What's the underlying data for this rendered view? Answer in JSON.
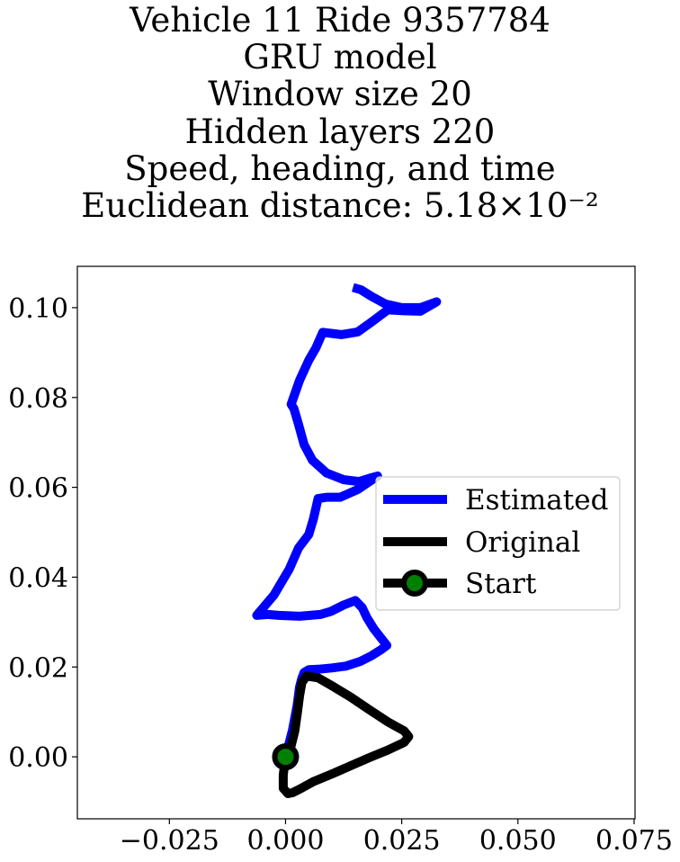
{
  "chart_data": {
    "type": "line",
    "title_lines": [
      "Vehicle 11 Ride 9357784",
      "GRU model",
      "Window size 20",
      "Hidden layers 220",
      "Speed, heading, and time",
      "Euclidean distance: 5.18×10⁻²"
    ],
    "xlabel": "",
    "ylabel": "",
    "xlim": [
      -0.0448,
      0.0752
    ],
    "ylim": [
      -0.0138,
      0.1092
    ],
    "x_ticks": [
      -0.025,
      0.0,
      0.025,
      0.05,
      0.075
    ],
    "x_tick_labels": [
      "−0.025",
      "0.000",
      "0.025",
      "0.050",
      "0.075"
    ],
    "y_ticks": [
      0.0,
      0.02,
      0.04,
      0.06,
      0.08,
      0.1
    ],
    "y_tick_labels": [
      "0.00",
      "0.02",
      "0.04",
      "0.06",
      "0.08",
      "0.10"
    ],
    "grid": false,
    "legend_position": "center-right",
    "series": [
      {
        "name": "Estimated",
        "color": "#0000ff",
        "marker": "none",
        "x": [
          0.0,
          0.0015,
          0.0025,
          0.003,
          0.0035,
          0.004,
          0.005,
          0.007,
          0.01,
          0.013,
          0.016,
          0.0185,
          0.0205,
          0.0218,
          0.0205,
          0.019,
          0.0175,
          0.0165,
          0.015,
          0.0125,
          0.0098,
          0.0075,
          0.0053,
          0.003,
          0.0008,
          -0.0015,
          -0.0038,
          -0.0062,
          -0.0025,
          0.0008,
          0.0028,
          0.005,
          0.006,
          0.007,
          0.009,
          0.0118,
          0.0155,
          0.0198,
          0.018,
          0.0158,
          0.0125,
          0.0088,
          0.0058,
          0.004,
          0.0028,
          0.0018,
          0.0012,
          0.003,
          0.005,
          0.0065,
          0.008,
          0.012,
          0.0155,
          0.0185,
          0.022,
          0.0255,
          0.029,
          0.0325,
          0.029,
          0.025,
          0.0215,
          0.0185,
          0.0162,
          0.0145
        ],
        "y": [
          0.0,
          0.006,
          0.0115,
          0.0155,
          0.0175,
          0.0188,
          0.0194,
          0.0195,
          0.0198,
          0.0202,
          0.0212,
          0.0225,
          0.0238,
          0.0248,
          0.0265,
          0.0285,
          0.031,
          0.0332,
          0.0348,
          0.0338,
          0.0324,
          0.0317,
          0.0315,
          0.0313,
          0.0314,
          0.0315,
          0.0317,
          0.0315,
          0.036,
          0.0418,
          0.0465,
          0.0495,
          0.053,
          0.0575,
          0.0578,
          0.0578,
          0.0595,
          0.0625,
          0.062,
          0.0613,
          0.0617,
          0.0632,
          0.066,
          0.0695,
          0.074,
          0.0775,
          0.0785,
          0.0838,
          0.0883,
          0.091,
          0.0945,
          0.094,
          0.0946,
          0.0968,
          0.0995,
          0.0993,
          0.0992,
          0.1013,
          0.1,
          0.1,
          0.1008,
          0.1025,
          0.104,
          0.1045
        ]
      },
      {
        "name": "Original",
        "color": "#000000",
        "marker": "none",
        "x": [
          0.0,
          -0.0005,
          -0.0005,
          0.0005,
          0.0015,
          0.003,
          0.006,
          0.01,
          0.014,
          0.018,
          0.022,
          0.0255,
          0.0265,
          0.0255,
          0.022,
          0.018,
          0.014,
          0.01,
          0.007,
          0.0045,
          0.0035,
          0.003,
          0.0025,
          0.002,
          0.0012,
          0.0005,
          0.0,
          0.0
        ],
        "y": [
          0.0,
          -0.004,
          -0.007,
          -0.0082,
          -0.008,
          -0.0072,
          -0.0055,
          -0.0038,
          -0.002,
          -0.0002,
          0.0015,
          0.0032,
          0.0045,
          0.0058,
          0.0078,
          0.0105,
          0.0133,
          0.0158,
          0.0176,
          0.018,
          0.0165,
          0.0135,
          0.0095,
          0.0058,
          0.0025,
          0.0005,
          0.0,
          0.0
        ]
      },
      {
        "name": "Start",
        "color": "#000000",
        "marker_face_color": "#008000",
        "marker": "circle",
        "x": [
          0.0
        ],
        "y": [
          0.0
        ]
      }
    ]
  }
}
